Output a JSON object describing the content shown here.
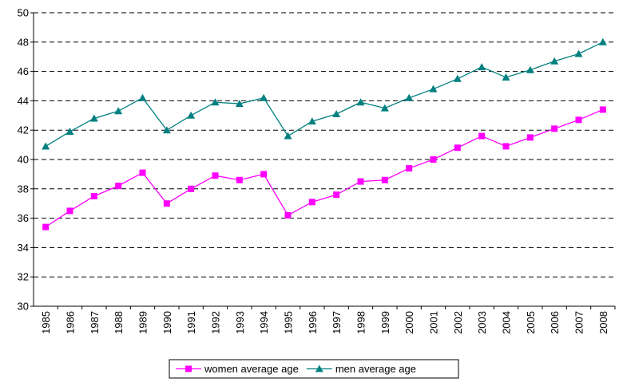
{
  "chart_data": {
    "type": "line",
    "categories": [
      "1985",
      "1986",
      "1987",
      "1988",
      "1989",
      "1990",
      "1991",
      "1992",
      "1993",
      "1994",
      "1995",
      "1996",
      "1997",
      "1998",
      "1999",
      "2000",
      "2001",
      "2002",
      "2003",
      "2004",
      "2005",
      "2006",
      "2007",
      "2008"
    ],
    "series": [
      {
        "name": "women average age",
        "color": "#ff00ff",
        "marker": "square",
        "values": [
          35.4,
          36.5,
          37.5,
          38.2,
          39.1,
          37.0,
          38.0,
          38.9,
          38.6,
          39.0,
          36.2,
          37.1,
          37.6,
          38.5,
          38.6,
          39.4,
          40.0,
          40.8,
          41.6,
          40.9,
          41.5,
          42.1,
          42.7,
          43.4
        ]
      },
      {
        "name": "men average age",
        "color": "#008080",
        "marker": "triangle",
        "values": [
          40.9,
          41.9,
          42.8,
          43.3,
          44.2,
          42.0,
          43.0,
          43.9,
          43.8,
          44.2,
          41.6,
          42.6,
          43.1,
          43.9,
          43.5,
          44.2,
          44.8,
          45.5,
          46.3,
          45.6,
          46.1,
          46.7,
          47.2,
          48.0
        ]
      }
    ],
    "ylim": [
      30,
      50
    ],
    "yticks": [
      30,
      32,
      34,
      36,
      38,
      40,
      42,
      44,
      46,
      48,
      50
    ],
    "grid": true,
    "grid_style": "dashed",
    "legend": "bottom"
  }
}
